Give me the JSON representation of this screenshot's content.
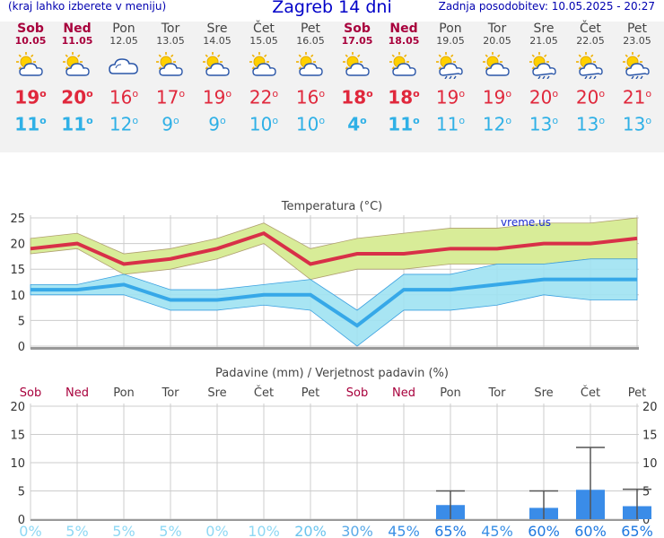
{
  "header": {
    "menu_hint": "(kraj lahko izberete v meniju)",
    "title": "Zagreb 14 dni",
    "updated": "Zadnja posodobitev: 10.05.2025 - 20:27"
  },
  "days": [
    {
      "name": "Sob",
      "date": "10.05",
      "weekend": true,
      "icon": "sun-cloud-icon",
      "tmax": "19",
      "tmin": "11"
    },
    {
      "name": "Ned",
      "date": "11.05",
      "weekend": true,
      "icon": "sun-cloud-icon",
      "tmax": "20",
      "tmin": "11"
    },
    {
      "name": "Pon",
      "date": "12.05",
      "weekend": false,
      "icon": "cloud-icon",
      "tmax": "16",
      "tmin": "12"
    },
    {
      "name": "Tor",
      "date": "13.05",
      "weekend": false,
      "icon": "sun-cloud-icon",
      "tmax": "17",
      "tmin": "9"
    },
    {
      "name": "Sre",
      "date": "14.05",
      "weekend": false,
      "icon": "sun-cloud-icon",
      "tmax": "19",
      "tmin": "9"
    },
    {
      "name": "Čet",
      "date": "15.05",
      "weekend": false,
      "icon": "sun-cloud-icon",
      "tmax": "22",
      "tmin": "10"
    },
    {
      "name": "Pet",
      "date": "16.05",
      "weekend": false,
      "icon": "sun-cloud-icon",
      "tmax": "16",
      "tmin": "10"
    },
    {
      "name": "Sob",
      "date": "17.05",
      "weekend": true,
      "icon": "sun-cloud-icon",
      "tmax": "18",
      "tmin": "4"
    },
    {
      "name": "Ned",
      "date": "18.05",
      "weekend": true,
      "icon": "sun-cloud-icon",
      "tmax": "18",
      "tmin": "11"
    },
    {
      "name": "Pon",
      "date": "19.05",
      "weekend": false,
      "icon": "sun-cloud-rain-icon",
      "tmax": "19",
      "tmin": "11"
    },
    {
      "name": "Tor",
      "date": "20.05",
      "weekend": false,
      "icon": "sun-cloud-icon",
      "tmax": "19",
      "tmin": "12"
    },
    {
      "name": "Sre",
      "date": "21.05",
      "weekend": false,
      "icon": "sun-cloud-rain-icon",
      "tmax": "20",
      "tmin": "13"
    },
    {
      "name": "Čet",
      "date": "22.05",
      "weekend": false,
      "icon": "sun-cloud-rain-icon",
      "tmax": "20",
      "tmin": "13"
    },
    {
      "name": "Pet",
      "date": "23.05",
      "weekend": false,
      "icon": "sun-cloud-rain-icon",
      "tmax": "21",
      "tmin": "13"
    }
  ],
  "colors": {
    "max_line": "#d83048",
    "min_line": "#36a8e8",
    "max_band": "#d8ec98",
    "min_band": "#9ee2f2",
    "bar": "#3a8ce8",
    "weekend": "#a8003c",
    "grid": "#cccccc"
  },
  "chart_data": [
    {
      "type": "line",
      "title": "Temperatura (°C)",
      "watermark": "vreme.us",
      "categories": [
        "10.05",
        "11.05",
        "12.05",
        "13.05",
        "14.05",
        "15.05",
        "16.05",
        "17.05",
        "18.05",
        "19.05",
        "20.05",
        "21.05",
        "22.05",
        "23.05"
      ],
      "series": [
        {
          "name": "max",
          "values": [
            19,
            20,
            16,
            17,
            19,
            22,
            16,
            18,
            18,
            19,
            19,
            20,
            20,
            21
          ],
          "band_low": [
            18,
            19,
            14,
            15,
            17,
            20,
            13,
            15,
            15,
            16,
            16,
            16,
            17,
            17
          ],
          "band_high": [
            21,
            22,
            18,
            19,
            21,
            24,
            19,
            21,
            22,
            23,
            23,
            24,
            24,
            25
          ]
        },
        {
          "name": "min",
          "values": [
            11,
            11,
            12,
            9,
            9,
            10,
            10,
            4,
            11,
            11,
            12,
            13,
            13,
            13
          ],
          "band_low": [
            10,
            10,
            10,
            7,
            7,
            8,
            7,
            0,
            7,
            7,
            8,
            10,
            9,
            9
          ],
          "band_high": [
            12,
            12,
            14,
            11,
            11,
            12,
            13,
            7,
            14,
            14,
            16,
            16,
            17,
            17
          ]
        }
      ],
      "ylim": [
        0,
        25
      ],
      "yticks": [
        "0",
        "5",
        "10",
        "15",
        "20",
        "25"
      ]
    },
    {
      "type": "bar",
      "title": "Padavine (mm) / Verjetnost padavin (%)",
      "categories": [
        "Sob",
        "Ned",
        "Pon",
        "Tor",
        "Sre",
        "Čet",
        "Pet",
        "Sob",
        "Ned",
        "Pon",
        "Tor",
        "Sre",
        "Čet",
        "Pet"
      ],
      "weekend": [
        true,
        true,
        false,
        false,
        false,
        false,
        false,
        true,
        true,
        false,
        false,
        false,
        false,
        false
      ],
      "values": [
        0,
        0,
        0,
        0,
        0,
        0,
        0,
        0,
        0,
        2.5,
        0,
        2.0,
        5.2,
        2.3
      ],
      "error_high": [
        0,
        0,
        0,
        0,
        0,
        0,
        0,
        0,
        0,
        5,
        0,
        5,
        12.7,
        5.3
      ],
      "probability": [
        "0%",
        "5%",
        "5%",
        "5%",
        "0%",
        "10%",
        "20%",
        "30%",
        "45%",
        "65%",
        "45%",
        "60%",
        "60%",
        "65%"
      ],
      "probability_values": [
        0,
        5,
        5,
        5,
        0,
        10,
        20,
        30,
        45,
        65,
        45,
        60,
        60,
        65
      ],
      "ylim": [
        0,
        20
      ],
      "yticks": [
        "0",
        "5",
        "10",
        "15",
        "20"
      ]
    }
  ]
}
